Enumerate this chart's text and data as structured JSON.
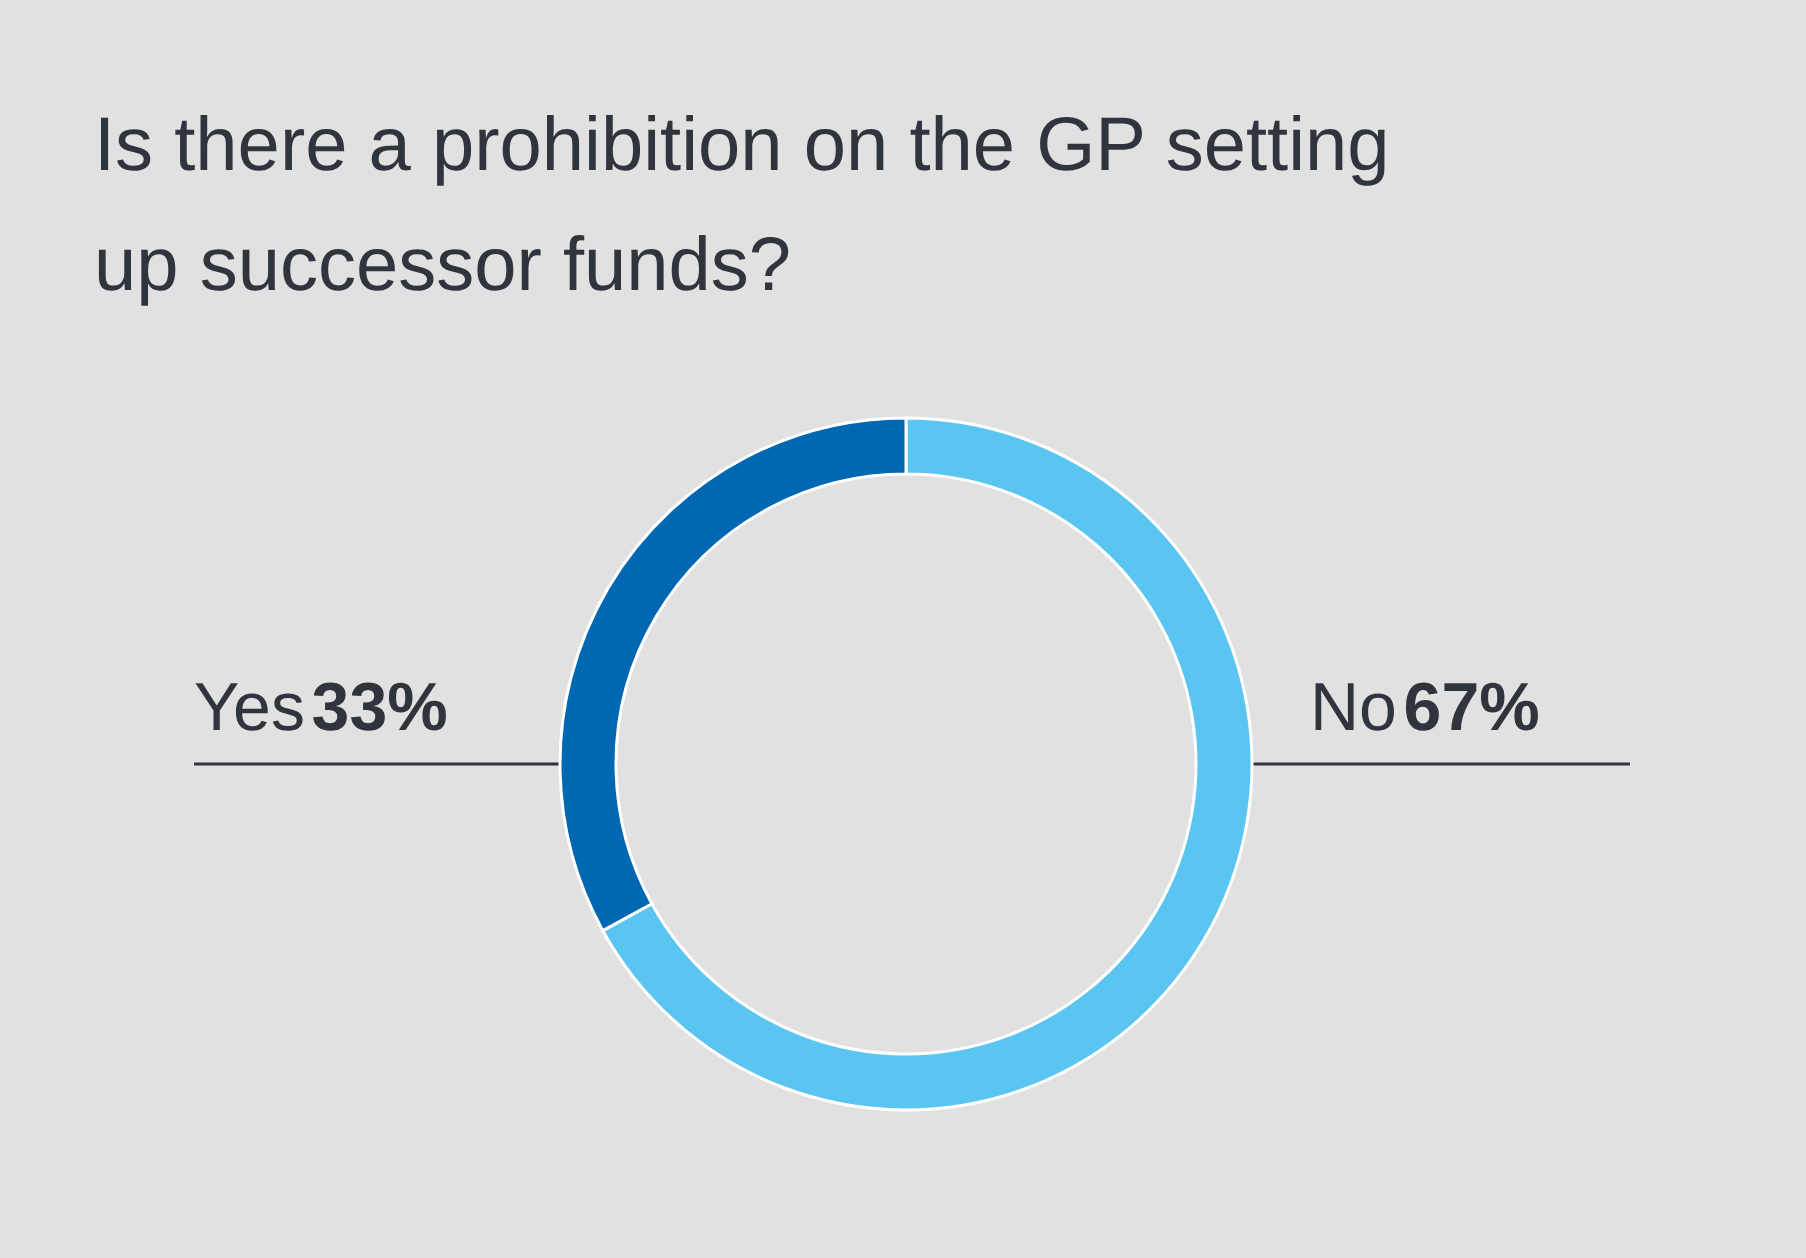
{
  "chart_data": {
    "type": "donut",
    "title": "Is there a prohibition on the GP setting up successor funds?",
    "categories": [
      "No",
      "Yes"
    ],
    "values": [
      67,
      33
    ],
    "colors": [
      "#5bc5f2",
      "#0068b3"
    ],
    "value_labels": [
      "67%",
      "33%"
    ]
  }
}
